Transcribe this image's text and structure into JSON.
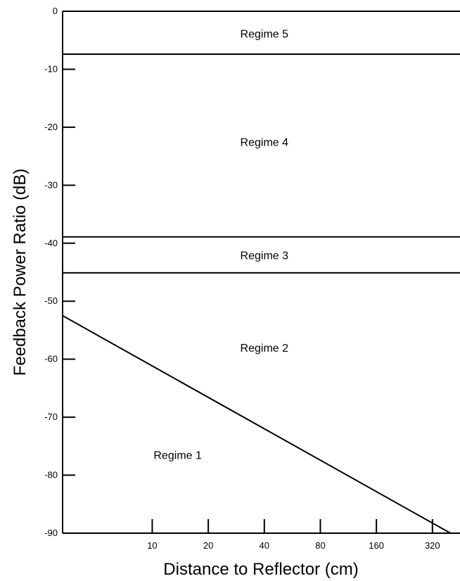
{
  "chart_data": {
    "type": "line",
    "title": "",
    "xlabel": "Distance to Reflector (cm)",
    "ylabel": "Feedback Power Ratio (dB)",
    "x_scale": "log2",
    "xlim": [
      3.3,
      450
    ],
    "ylim": [
      -90,
      0
    ],
    "x_ticks": [
      10,
      20,
      40,
      80,
      160,
      320
    ],
    "x_tick_labels": [
      "10",
      "20",
      "40",
      "80",
      "160",
      "320"
    ],
    "y_ticks": [
      0,
      -10,
      -20,
      -30,
      -40,
      -50,
      -60,
      -70,
      -80,
      -90
    ],
    "y_tick_labels": [
      "0",
      "-10",
      "-20",
      "-30",
      "-40",
      "-50",
      "-60",
      "-70",
      "-80",
      "-90"
    ],
    "grid": false,
    "horizontal_boundaries": [
      {
        "y": -7.4
      },
      {
        "y": -38.9
      },
      {
        "y": -45.1
      }
    ],
    "series": [
      {
        "x": [
          3.3,
          400
        ],
        "y": [
          -52.5,
          -90
        ]
      }
    ],
    "regions": [
      {
        "label": "Regime 5",
        "x": 40,
        "y": -3.8
      },
      {
        "label": "Regime 4",
        "x": 40,
        "y": -22.5
      },
      {
        "label": "Regime 3",
        "x": 40,
        "y": -42
      },
      {
        "label": "Regime 2",
        "x": 40,
        "y": -58
      },
      {
        "label": "Regime 1",
        "x": 13.7,
        "y": -76.5
      }
    ]
  }
}
